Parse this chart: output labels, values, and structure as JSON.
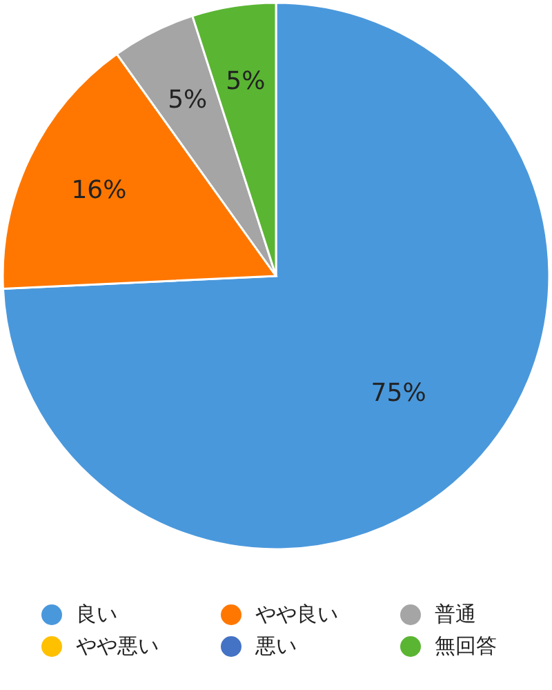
{
  "chart_data": {
    "type": "pie",
    "categories": [
      "良い",
      "やや良い",
      "普通",
      "やや悪い",
      "悪い",
      "無回答"
    ],
    "values": [
      75,
      16,
      5,
      0,
      0,
      5
    ],
    "colors": [
      "#4a98dc",
      "#ff7700",
      "#a5a5a5",
      "#ffc000",
      "#4472c4",
      "#5ab533"
    ],
    "value_labels": [
      "75%",
      "16%",
      "5%",
      null,
      null,
      "5%"
    ],
    "legend": "bottom"
  }
}
